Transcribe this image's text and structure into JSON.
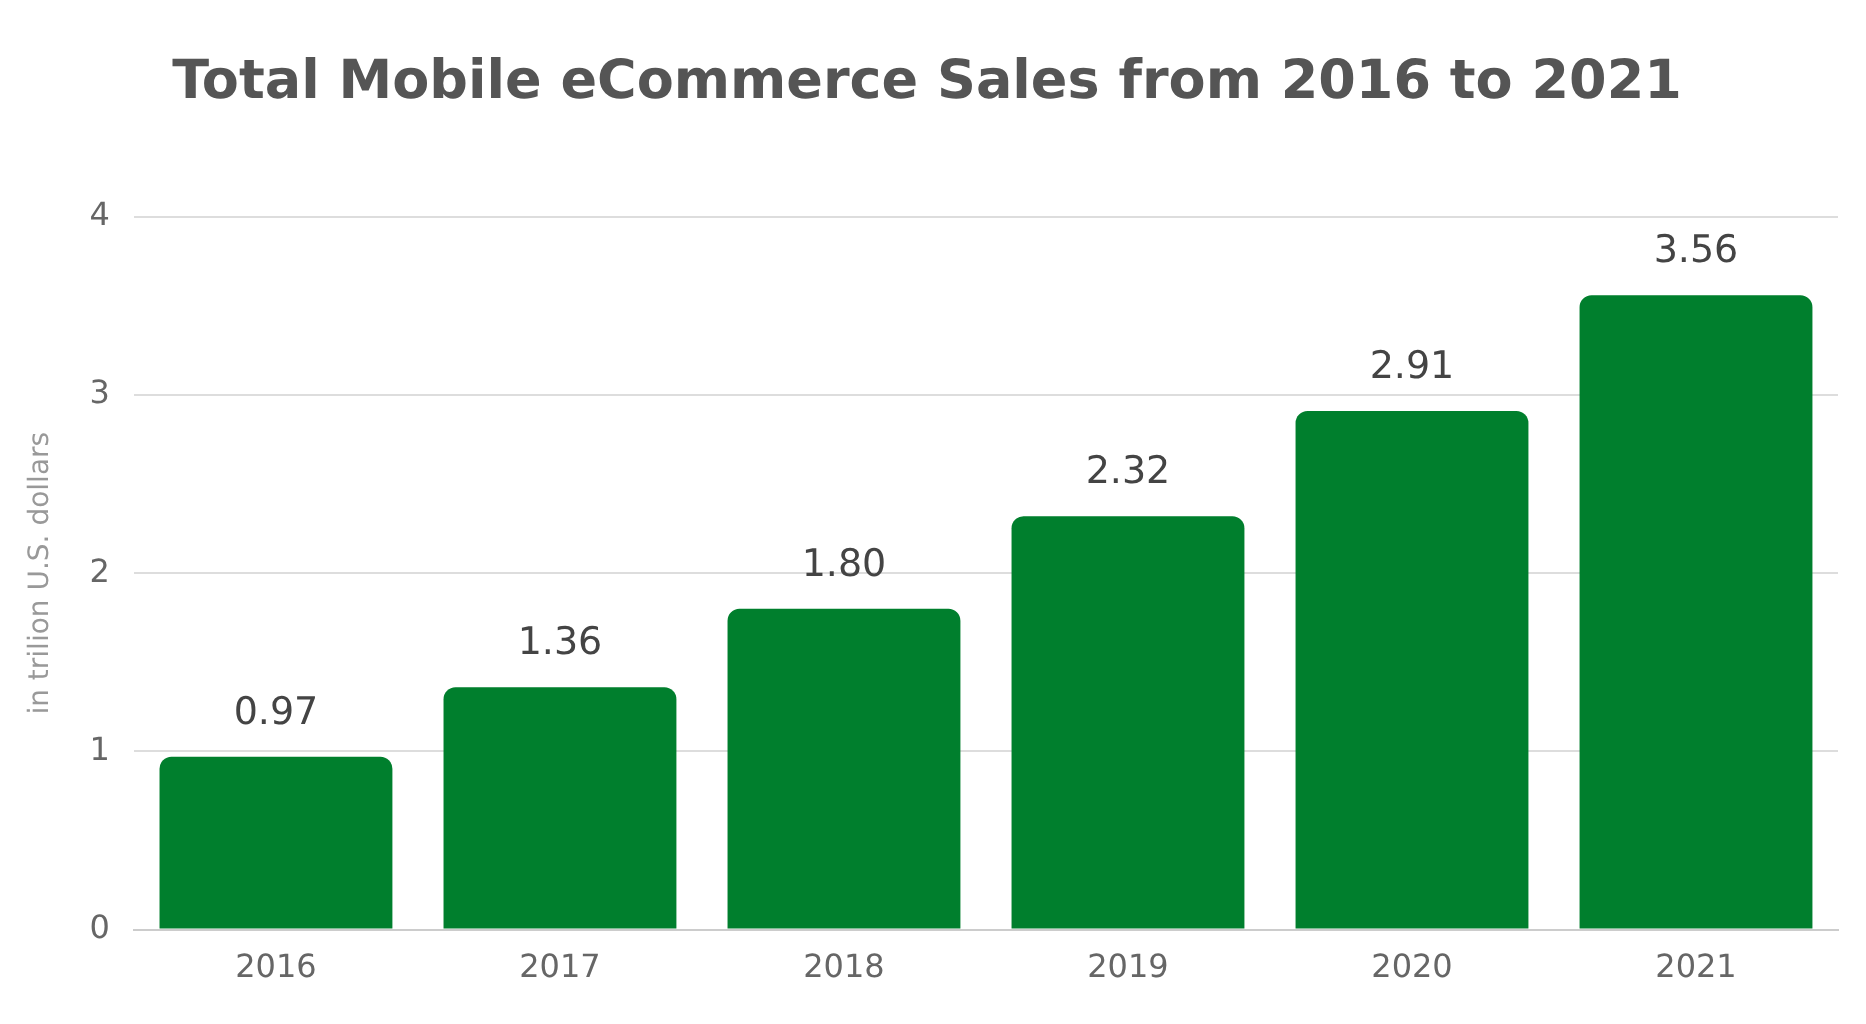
{
  "chart_data": {
    "type": "bar",
    "title": "Total Mobile eCommerce Sales from 2016 to 2021",
    "ylabel": "in trilion U.S. dollars",
    "categories": [
      "2016",
      "2017",
      "2018",
      "2019",
      "2020",
      "2021"
    ],
    "values": [
      0.97,
      1.36,
      1.8,
      2.32,
      2.91,
      3.56
    ],
    "value_labels": [
      "0.97",
      "1.36",
      "1.80",
      "2.32",
      "2.91",
      "3.56"
    ],
    "color": "#007f2d",
    "ylim": [
      0,
      4
    ],
    "yticks": [
      0,
      1,
      2,
      3,
      4
    ],
    "grid": "y",
    "legend": false
  }
}
